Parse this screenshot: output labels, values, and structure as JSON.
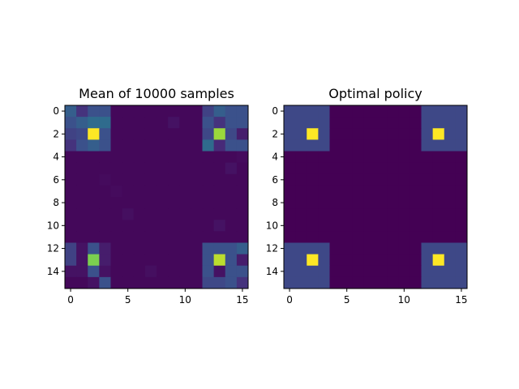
{
  "chart_data": [
    {
      "type": "heatmap",
      "title": "Mean of 10000 samples",
      "xlabel": "",
      "ylabel": "",
      "x_ticks": [
        0,
        5,
        10,
        15
      ],
      "y_ticks": [
        0,
        2,
        4,
        6,
        8,
        10,
        12,
        14
      ],
      "xlim": [
        -0.5,
        15.5
      ],
      "ylim": [
        15.5,
        -0.5
      ],
      "colormap": "viridis",
      "grid": false,
      "value_range": [
        0,
        1
      ],
      "rows": [
        [
          0.3,
          0.15,
          0.25,
          0.25,
          0.02,
          0.02,
          0.02,
          0.02,
          0.02,
          0.02,
          0.02,
          0.02,
          0.2,
          0.3,
          0.25,
          0.25
        ],
        [
          0.25,
          0.3,
          0.35,
          0.35,
          0.02,
          0.02,
          0.02,
          0.02,
          0.02,
          0.05,
          0.02,
          0.02,
          0.25,
          0.15,
          0.25,
          0.25
        ],
        [
          0.2,
          0.22,
          1.0,
          0.25,
          0.02,
          0.02,
          0.02,
          0.02,
          0.02,
          0.02,
          0.02,
          0.02,
          0.22,
          0.85,
          0.22,
          0.08
        ],
        [
          0.15,
          0.25,
          0.3,
          0.25,
          0.02,
          0.02,
          0.02,
          0.02,
          0.02,
          0.02,
          0.02,
          0.02,
          0.35,
          0.12,
          0.25,
          0.25
        ],
        [
          0.02,
          0.02,
          0.02,
          0.02,
          0.02,
          0.02,
          0.02,
          0.02,
          0.02,
          0.02,
          0.02,
          0.02,
          0.02,
          0.02,
          0.02,
          0.03
        ],
        [
          0.02,
          0.02,
          0.02,
          0.02,
          0.02,
          0.02,
          0.02,
          0.02,
          0.02,
          0.02,
          0.02,
          0.02,
          0.02,
          0.02,
          0.05,
          0.02
        ],
        [
          0.02,
          0.02,
          0.02,
          0.03,
          0.02,
          0.02,
          0.02,
          0.02,
          0.02,
          0.02,
          0.02,
          0.02,
          0.02,
          0.02,
          0.02,
          0.02
        ],
        [
          0.02,
          0.02,
          0.02,
          0.02,
          0.03,
          0.02,
          0.02,
          0.02,
          0.02,
          0.02,
          0.02,
          0.02,
          0.02,
          0.02,
          0.02,
          0.02
        ],
        [
          0.02,
          0.02,
          0.02,
          0.02,
          0.02,
          0.02,
          0.02,
          0.02,
          0.02,
          0.02,
          0.02,
          0.02,
          0.02,
          0.02,
          0.02,
          0.02
        ],
        [
          0.02,
          0.02,
          0.02,
          0.02,
          0.02,
          0.04,
          0.02,
          0.02,
          0.02,
          0.02,
          0.02,
          0.02,
          0.02,
          0.02,
          0.02,
          0.02
        ],
        [
          0.02,
          0.02,
          0.02,
          0.02,
          0.02,
          0.02,
          0.02,
          0.02,
          0.02,
          0.02,
          0.02,
          0.02,
          0.02,
          0.05,
          0.02,
          0.02
        ],
        [
          0.02,
          0.02,
          0.02,
          0.02,
          0.02,
          0.02,
          0.02,
          0.02,
          0.02,
          0.02,
          0.02,
          0.02,
          0.02,
          0.02,
          0.02,
          0.02
        ],
        [
          0.2,
          0.05,
          0.25,
          0.08,
          0.02,
          0.02,
          0.02,
          0.02,
          0.02,
          0.02,
          0.02,
          0.02,
          0.25,
          0.25,
          0.25,
          0.3
        ],
        [
          0.2,
          0.05,
          0.8,
          0.08,
          0.02,
          0.02,
          0.02,
          0.02,
          0.02,
          0.02,
          0.02,
          0.02,
          0.25,
          0.9,
          0.25,
          0.08
        ],
        [
          0.05,
          0.05,
          0.25,
          0.05,
          0.02,
          0.02,
          0.02,
          0.04,
          0.02,
          0.02,
          0.02,
          0.02,
          0.25,
          0.05,
          0.25,
          0.25
        ],
        [
          0.02,
          0.02,
          0.05,
          0.25,
          0.02,
          0.02,
          0.02,
          0.02,
          0.02,
          0.02,
          0.02,
          0.02,
          0.22,
          0.22,
          0.25,
          0.15
        ]
      ]
    },
    {
      "type": "heatmap",
      "title": "Optimal policy",
      "xlabel": "",
      "ylabel": "",
      "x_ticks": [
        0,
        5,
        10,
        15
      ],
      "y_ticks": [
        0,
        2,
        4,
        6,
        8,
        10,
        12,
        14
      ],
      "xlim": [
        -0.5,
        15.5
      ],
      "ylim": [
        15.5,
        -0.5
      ],
      "colormap": "viridis",
      "grid": false,
      "value_range": [
        0,
        1
      ],
      "rows": [
        [
          0.22,
          0.22,
          0.22,
          0.22,
          0,
          0,
          0,
          0,
          0,
          0,
          0,
          0,
          0.22,
          0.22,
          0.22,
          0.22
        ],
        [
          0.22,
          0.22,
          0.22,
          0.22,
          0,
          0,
          0,
          0,
          0,
          0,
          0,
          0,
          0.22,
          0.22,
          0.22,
          0.22
        ],
        [
          0.22,
          0.22,
          1.0,
          0.22,
          0,
          0,
          0,
          0,
          0,
          0,
          0,
          0,
          0.22,
          1.0,
          0.22,
          0.22
        ],
        [
          0.22,
          0.22,
          0.22,
          0.22,
          0,
          0,
          0,
          0,
          0,
          0,
          0,
          0,
          0.22,
          0.22,
          0.22,
          0.22
        ],
        [
          0,
          0,
          0,
          0,
          0,
          0,
          0,
          0,
          0,
          0,
          0,
          0,
          0,
          0,
          0,
          0
        ],
        [
          0,
          0,
          0,
          0,
          0,
          0,
          0,
          0,
          0,
          0,
          0,
          0,
          0,
          0,
          0,
          0
        ],
        [
          0,
          0,
          0,
          0,
          0,
          0,
          0,
          0,
          0,
          0,
          0,
          0,
          0,
          0,
          0,
          0
        ],
        [
          0,
          0,
          0,
          0,
          0,
          0,
          0,
          0,
          0,
          0,
          0,
          0,
          0,
          0,
          0,
          0
        ],
        [
          0,
          0,
          0,
          0,
          0,
          0,
          0,
          0,
          0,
          0,
          0,
          0,
          0,
          0,
          0,
          0
        ],
        [
          0,
          0,
          0,
          0,
          0,
          0,
          0,
          0,
          0,
          0,
          0,
          0,
          0,
          0,
          0,
          0
        ],
        [
          0,
          0,
          0,
          0,
          0,
          0,
          0,
          0,
          0,
          0,
          0,
          0,
          0,
          0,
          0,
          0
        ],
        [
          0,
          0,
          0,
          0,
          0,
          0,
          0,
          0,
          0,
          0,
          0,
          0,
          0,
          0,
          0,
          0
        ],
        [
          0.22,
          0.22,
          0.22,
          0.22,
          0,
          0,
          0,
          0,
          0,
          0,
          0,
          0,
          0.22,
          0.22,
          0.22,
          0.22
        ],
        [
          0.22,
          0.22,
          1.0,
          0.22,
          0,
          0,
          0,
          0,
          0,
          0,
          0,
          0,
          0.22,
          1.0,
          0.22,
          0.22
        ],
        [
          0.22,
          0.22,
          0.22,
          0.22,
          0,
          0,
          0,
          0,
          0,
          0,
          0,
          0,
          0.22,
          0.22,
          0.22,
          0.22
        ],
        [
          0.22,
          0.22,
          0.22,
          0.22,
          0,
          0,
          0,
          0,
          0,
          0,
          0,
          0,
          0.22,
          0.22,
          0.22,
          0.22
        ]
      ]
    }
  ]
}
